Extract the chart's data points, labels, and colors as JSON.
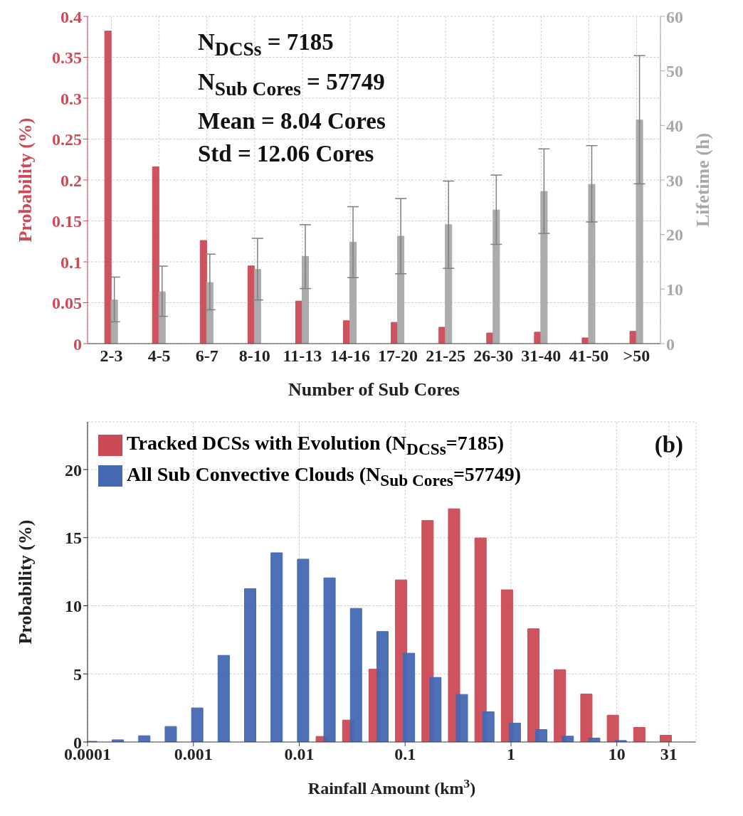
{
  "chart_data": [
    {
      "type": "bar",
      "xlabel": "Number of Sub Cores",
      "ylabel": "Probability (%)",
      "y2label": "Lifetime (h)",
      "categories": [
        "2-3",
        "4-5",
        "6-7",
        "8-10",
        "11-13",
        "14-16",
        "17-20",
        "21-25",
        "26-30",
        "31-40",
        "41-50",
        ">50"
      ],
      "series": [
        {
          "color": "#cc4a55",
          "values": [
            0.382,
            0.216,
            0.126,
            0.095,
            0.052,
            0.028,
            0.026,
            0.02,
            0.013,
            0.014,
            0.007,
            0.015
          ]
        },
        {
          "color": "#a8a8a8",
          "axis": "y2",
          "values": [
            8.0,
            9.5,
            11.2,
            13.6,
            16.0,
            18.6,
            19.7,
            21.8,
            24.5,
            27.9,
            29.2,
            41.0
          ],
          "errors": [
            [
              4.0,
              12.2
            ],
            [
              5.0,
              14.2
            ],
            [
              6.2,
              16.4
            ],
            [
              8.0,
              19.3
            ],
            [
              10.1,
              21.8
            ],
            [
              12.1,
              25.1
            ],
            [
              12.8,
              26.6
            ],
            [
              13.8,
              29.8
            ],
            [
              18.2,
              30.9
            ],
            [
              20.2,
              35.7
            ],
            [
              22.3,
              36.3
            ],
            [
              29.3,
              52.8
            ]
          ]
        }
      ],
      "ylim": [
        0,
        0.4
      ],
      "yticks": [
        0,
        0.05,
        0.1,
        0.15,
        0.2,
        0.25,
        0.3,
        0.35,
        0.4
      ],
      "y2lim": [
        0,
        60
      ],
      "y2ticks": [
        0,
        10,
        20,
        30,
        40,
        50,
        60
      ],
      "grid": true,
      "annotations": [
        "N$_{DCSs}$ = 7185",
        "N$_{Sub Cores}$ = 57749",
        "Mean = 8.04 Cores",
        "Std = 12.06 Cores"
      ]
    },
    {
      "type": "bar",
      "xlabel": "Rainfall Amount (km$^{3}$)",
      "ylabel": "Probability (%)",
      "x": [
        0.0001,
        0.0001778,
        0.0003162,
        0.0005623,
        0.001,
        0.001778,
        0.003162,
        0.005623,
        0.01,
        0.01778,
        0.03162,
        0.05623,
        0.1,
        0.1778,
        0.3162,
        0.5623,
        1,
        1.778,
        3.162,
        5.623,
        10,
        17.78,
        31.62
      ],
      "series": [
        {
          "name": "Tracked DCSs with Evolution (N$_{DCSs}$=7185)",
          "color": "#cc4a55",
          "values": [
            null,
            null,
            null,
            null,
            null,
            null,
            null,
            null,
            null,
            0.41,
            1.61,
            5.34,
            11.9,
            16.26,
            17.12,
            14.98,
            11.17,
            8.31,
            5.31,
            3.52,
            1.97,
            1.07,
            0.5
          ]
        },
        {
          "name": "All Sub Convective Clouds (N$_{Sub Cores}$=57749)",
          "color": "#4468b2",
          "values": [
            0.05,
            0.16,
            0.46,
            1.14,
            2.5,
            6.36,
            11.26,
            13.89,
            13.42,
            12.05,
            9.81,
            8.11,
            6.52,
            4.74,
            3.49,
            2.22,
            1.39,
            0.91,
            0.43,
            0.29,
            0.11,
            null,
            null
          ]
        }
      ],
      "xlim": [
        0.0001,
        56
      ],
      "xticks": [
        0.0001,
        0.001,
        0.01,
        0.1,
        1,
        10,
        31
      ],
      "log": "x",
      "ylim": [
        0,
        23.5
      ],
      "yticks": [
        0,
        5,
        10,
        15,
        20
      ],
      "grid": true,
      "legend": "top left",
      "annotations": [
        "(b)"
      ]
    }
  ]
}
